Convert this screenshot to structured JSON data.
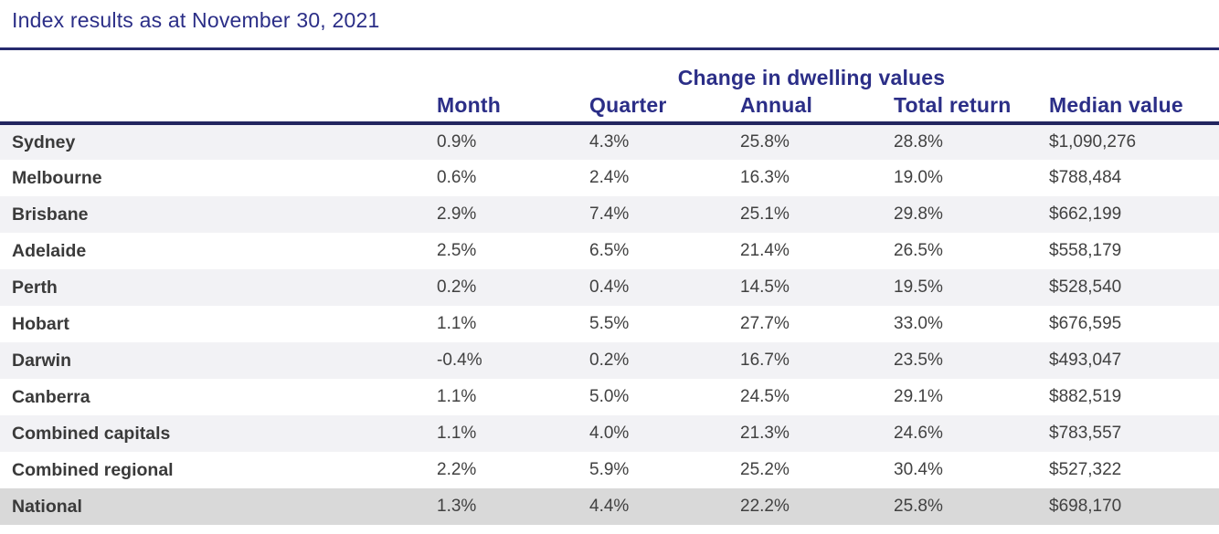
{
  "title": "Index results as at November 30, 2021",
  "table": {
    "group_header": "Change in dwelling values",
    "columns": [
      "Month",
      "Quarter",
      "Annual",
      "Total return",
      "Median value"
    ],
    "rows": [
      {
        "label": "Sydney",
        "month": "0.9%",
        "quarter": "4.3%",
        "annual": "25.8%",
        "total_return": "28.8%",
        "median_value": "$1,090,276"
      },
      {
        "label": "Melbourne",
        "month": "0.6%",
        "quarter": "2.4%",
        "annual": "16.3%",
        "total_return": "19.0%",
        "median_value": "$788,484"
      },
      {
        "label": "Brisbane",
        "month": "2.9%",
        "quarter": "7.4%",
        "annual": "25.1%",
        "total_return": "29.8%",
        "median_value": "$662,199"
      },
      {
        "label": "Adelaide",
        "month": "2.5%",
        "quarter": "6.5%",
        "annual": "21.4%",
        "total_return": "26.5%",
        "median_value": "$558,179"
      },
      {
        "label": "Perth",
        "month": "0.2%",
        "quarter": "0.4%",
        "annual": "14.5%",
        "total_return": "19.5%",
        "median_value": "$528,540"
      },
      {
        "label": "Hobart",
        "month": "1.1%",
        "quarter": "5.5%",
        "annual": "27.7%",
        "total_return": "33.0%",
        "median_value": "$676,595"
      },
      {
        "label": "Darwin",
        "month": "-0.4%",
        "quarter": "0.2%",
        "annual": "16.7%",
        "total_return": "23.5%",
        "median_value": "$493,047"
      },
      {
        "label": "Canberra",
        "month": "1.1%",
        "quarter": "5.0%",
        "annual": "24.5%",
        "total_return": "29.1%",
        "median_value": "$882,519"
      },
      {
        "label": "Combined capitals",
        "month": "1.1%",
        "quarter": "4.0%",
        "annual": "21.3%",
        "total_return": "24.6%",
        "median_value": "$783,557"
      },
      {
        "label": "Combined regional",
        "month": "2.2%",
        "quarter": "5.9%",
        "annual": "25.2%",
        "total_return": "30.4%",
        "median_value": "$527,322"
      },
      {
        "label": "National",
        "month": "1.3%",
        "quarter": "4.4%",
        "annual": "22.2%",
        "total_return": "25.8%",
        "median_value": "$698,170",
        "highlight": true
      }
    ]
  },
  "colors": {
    "accent_indigo": "#2b2e87",
    "rule_navy": "#262a6e",
    "row_alt_bg": "#f2f2f5",
    "row_highlight_bg": "#d9d9d9",
    "body_text": "#414141"
  }
}
